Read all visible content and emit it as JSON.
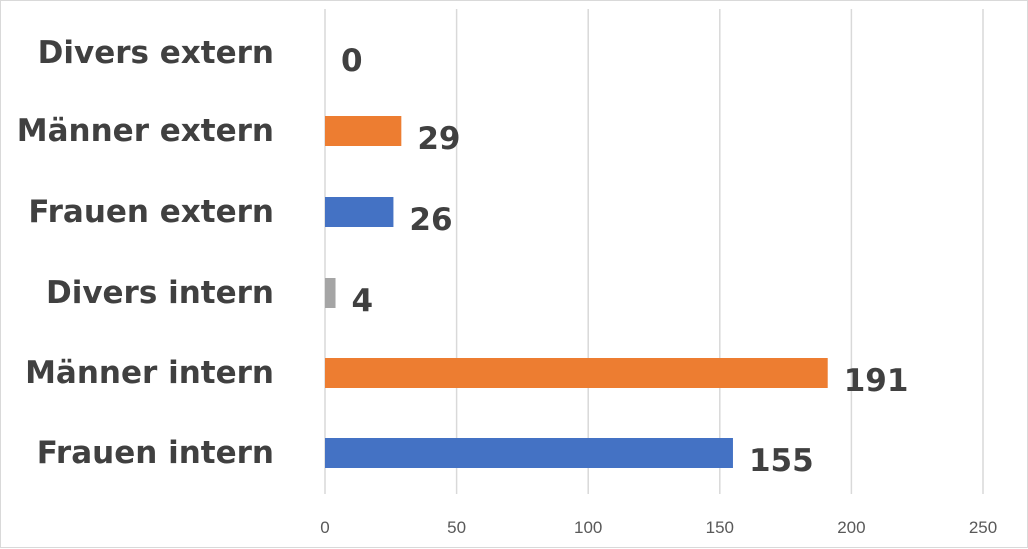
{
  "chart_data": {
    "type": "bar",
    "orientation": "horizontal",
    "categories": [
      "Frauen intern",
      "Männer intern",
      "Divers intern",
      "Frauen extern",
      "Männer extern",
      "Divers extern"
    ],
    "values": [
      155,
      191,
      4,
      26,
      29,
      0
    ],
    "value_labels": [
      "155",
      "191",
      "4",
      "26",
      "29",
      "0"
    ],
    "bar_colors": [
      "#4472c4",
      "#ed7d31",
      "#a5a5a5",
      "#4472c4",
      "#ed7d31",
      "#a5a5a5"
    ],
    "xlim": [
      0,
      250
    ],
    "x_ticks": [
      0,
      50,
      100,
      150,
      200,
      250
    ],
    "x_tick_labels": [
      "0",
      "50",
      "100",
      "150",
      "200",
      "250"
    ],
    "grid": true,
    "legend": "none",
    "category_order": "bottom-to-top",
    "colors": {
      "label_text": "#404040",
      "tick_text": "#595959",
      "gridline": "#d9d9d9"
    }
  }
}
